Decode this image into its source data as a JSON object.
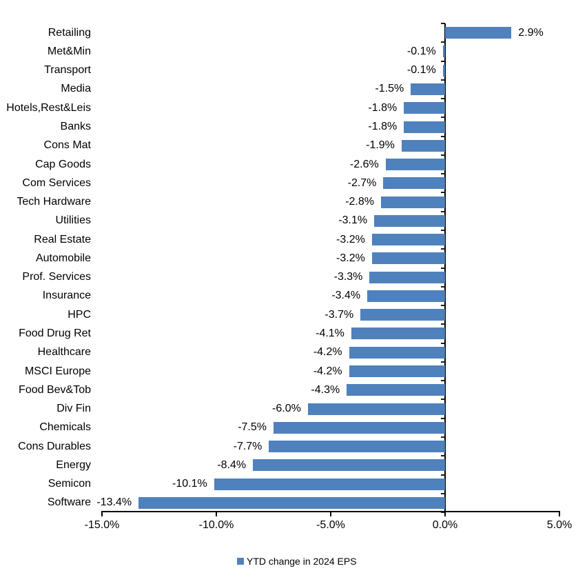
{
  "chart_data": {
    "type": "bar",
    "orientation": "horizontal",
    "title": "",
    "xlabel": "",
    "ylabel": "",
    "categories": [
      "Retailing",
      "Met&Min",
      "Transport",
      "Media",
      "Hotels,Rest&Leis",
      "Banks",
      "Cons Mat",
      "Cap Goods",
      "Com Services",
      "Tech Hardware",
      "Utilities",
      "Real Estate",
      "Automobile",
      "Prof. Services",
      "Insurance",
      "HPC",
      "Food Drug Ret",
      "Healthcare",
      "MSCI Europe",
      "Food Bev&Tob",
      "Div Fin",
      "Chemicals",
      "Cons Durables",
      "Energy",
      "Semicon",
      "Software"
    ],
    "values": [
      2.9,
      -0.1,
      -0.1,
      -1.5,
      -1.8,
      -1.8,
      -1.9,
      -2.6,
      -2.7,
      -2.8,
      -3.1,
      -3.2,
      -3.2,
      -3.3,
      -3.4,
      -3.7,
      -4.1,
      -4.2,
      -4.2,
      -4.3,
      -6.0,
      -7.5,
      -7.7,
      -8.4,
      -10.1,
      -13.4
    ],
    "value_labels": [
      "2.9%",
      "-0.1%",
      "-0.1%",
      "-1.5%",
      "-1.8%",
      "-1.8%",
      "-1.9%",
      "-2.6%",
      "-2.7%",
      "-2.8%",
      "-3.1%",
      "-3.2%",
      "-3.2%",
      "-3.3%",
      "-3.4%",
      "-3.7%",
      "-4.1%",
      "-4.2%",
      "-4.2%",
      "-4.3%",
      "-6.0%",
      "-7.5%",
      "-7.7%",
      "-8.4%",
      "-10.1%",
      "-13.4%"
    ],
    "xlim": [
      -15,
      5
    ],
    "x_ticks": [
      -15,
      -10,
      -5,
      0,
      5
    ],
    "x_tick_labels": [
      "-15.0%",
      "-10.0%",
      "-5.0%",
      "0.0%",
      "5.0%"
    ],
    "grid": false,
    "bar_color": "#4F81BD",
    "axis_color": "#000000",
    "legend_position": "bottom",
    "legend": [
      {
        "label": "YTD change in 2024 EPS",
        "color": "#4F81BD"
      }
    ]
  }
}
